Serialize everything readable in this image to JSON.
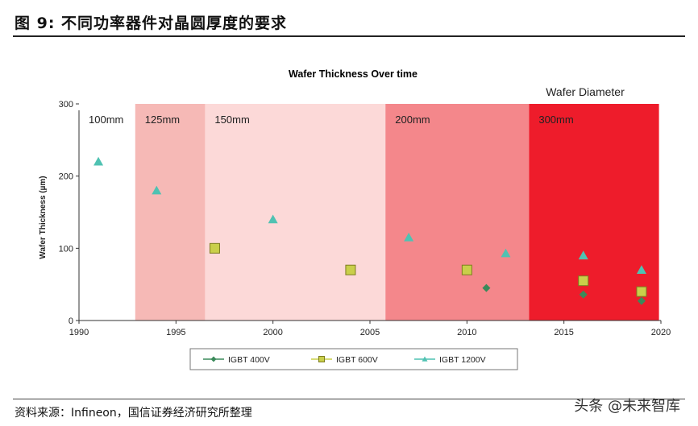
{
  "figure": {
    "title": "图 9:  不同功率器件对晶圆厚度的要求",
    "source": "资料来源：Infineon，国信证券经济研究所整理",
    "watermark": "头条 @未来智库"
  },
  "chart_data": {
    "type": "scatter",
    "title": "Wafer Thickness Over time",
    "subtitle": "Wafer Diameter",
    "xlabel": "",
    "ylabel": "Wafer Thickness (µm)",
    "xlim": [
      1990,
      2020
    ],
    "ylim": [
      0,
      300
    ],
    "xticks": [
      1990,
      1995,
      2000,
      2005,
      2010,
      2015,
      2020
    ],
    "yticks": [
      0,
      100,
      200,
      300
    ],
    "grid": false,
    "legend_position": "bottom",
    "regions": [
      {
        "label": "100mm",
        "from": 1990,
        "to": 1992.9,
        "color": "#ffffff"
      },
      {
        "label": "125mm",
        "from": 1992.9,
        "to": 1996.5,
        "color": "#f6b9b6"
      },
      {
        "label": "150mm",
        "from": 1996.5,
        "to": 2005.8,
        "color": "#fcd9d8"
      },
      {
        "label": "200mm",
        "from": 2005.8,
        "to": 2013.2,
        "color": "#f4878b"
      },
      {
        "label": "300mm",
        "from": 2013.2,
        "to": 2019.9,
        "color": "#ee1c2b"
      }
    ],
    "series": [
      {
        "name": "IGBT 400V",
        "marker": "diamond",
        "color": "#3a8a5a",
        "points": [
          [
            2011,
            45
          ],
          [
            2016,
            36
          ],
          [
            2019,
            27
          ]
        ]
      },
      {
        "name": "IGBT 600V",
        "marker": "square",
        "color": "#c9cf4a",
        "points": [
          [
            1997,
            100
          ],
          [
            2004,
            70
          ],
          [
            2010,
            70
          ],
          [
            2016,
            55
          ],
          [
            2019,
            40
          ]
        ]
      },
      {
        "name": "IGBT 1200V",
        "marker": "triangle",
        "color": "#4fc2b2",
        "points": [
          [
            1991,
            220
          ],
          [
            1994,
            180
          ],
          [
            2000,
            140
          ],
          [
            2007,
            115
          ],
          [
            2012,
            93
          ],
          [
            2016,
            90
          ],
          [
            2019,
            70
          ]
        ]
      }
    ]
  }
}
